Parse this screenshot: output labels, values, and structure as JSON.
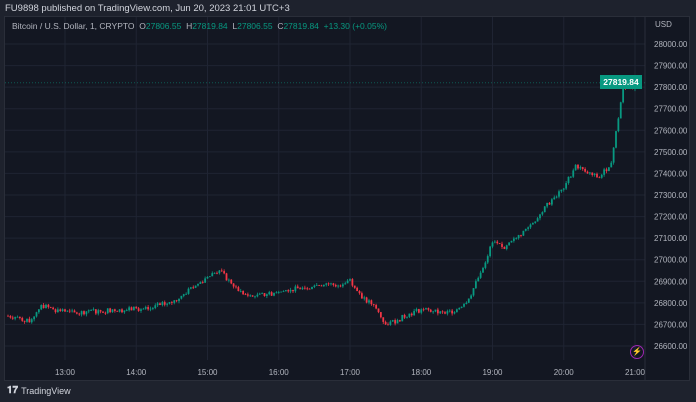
{
  "header": {
    "published": "FU9898 published on TradingView.com, Jun 20, 2023 21:01 UTC+3"
  },
  "legend": {
    "symbol": "Bitcoin / U.S. Dollar, 1, CRYPTO",
    "o_label": "O",
    "o": "27806.55",
    "h_label": "H",
    "h": "27819.84",
    "l_label": "L",
    "l": "27806.55",
    "c_label": "C",
    "c": "27819.84",
    "change": "+13.30 (+0.05%)"
  },
  "footer": {
    "brand": "TradingView"
  },
  "colors": {
    "up": "#089981",
    "down": "#f23645",
    "background": "#131722",
    "grid": "#1f2433"
  },
  "chart_data": {
    "type": "candlestick",
    "y_unit": "USD",
    "last_price": "27819.84",
    "ylim": [
      26540,
      28080
    ],
    "y_ticks": [
      "28000.00",
      "27900.00",
      "27800.00",
      "27700.00",
      "27600.00",
      "27500.00",
      "27400.00",
      "27300.00",
      "27200.00",
      "27100.00",
      "27000.00",
      "26900.00",
      "26800.00",
      "26700.00",
      "26600.00"
    ],
    "x_ticks": [
      "13:00",
      "14:00",
      "15:00",
      "16:00",
      "17:00",
      "18:00",
      "19:00",
      "20:00",
      "21:00"
    ],
    "xlim": [
      "12:11",
      "21:08"
    ],
    "grid": true,
    "closes_10min": {
      "times": [
        "12:10",
        "12:20",
        "12:30",
        "12:40",
        "12:50",
        "13:00",
        "13:10",
        "13:20",
        "13:30",
        "13:40",
        "13:50",
        "14:00",
        "14:10",
        "14:20",
        "14:30",
        "14:40",
        "14:50",
        "15:00",
        "15:10",
        "15:20",
        "15:30",
        "15:40",
        "15:50",
        "16:00",
        "16:10",
        "16:20",
        "16:30",
        "16:40",
        "16:50",
        "17:00",
        "17:10",
        "17:20",
        "17:30",
        "17:40",
        "17:50",
        "18:00",
        "18:10",
        "18:20",
        "18:30",
        "18:40",
        "18:50",
        "19:00",
        "19:10",
        "19:20",
        "19:30",
        "19:40",
        "19:50",
        "20:00",
        "20:10",
        "20:20",
        "20:30",
        "20:40",
        "20:50",
        "21:00",
        "21:03"
      ],
      "values": [
        26740,
        26735,
        26710,
        26790,
        26770,
        26760,
        26750,
        26765,
        26760,
        26770,
        26765,
        26775,
        26770,
        26790,
        26800,
        26840,
        26880,
        26920,
        26950,
        26890,
        26840,
        26830,
        26840,
        26850,
        26860,
        26870,
        26880,
        26890,
        26880,
        26910,
        26820,
        26790,
        26700,
        26720,
        26750,
        26770,
        26760,
        26750,
        26770,
        26820,
        26940,
        27080,
        27050,
        27100,
        27150,
        27210,
        27280,
        27330,
        27440,
        27400,
        27380,
        27450,
        27800,
        27800,
        27819.84
      ]
    }
  }
}
